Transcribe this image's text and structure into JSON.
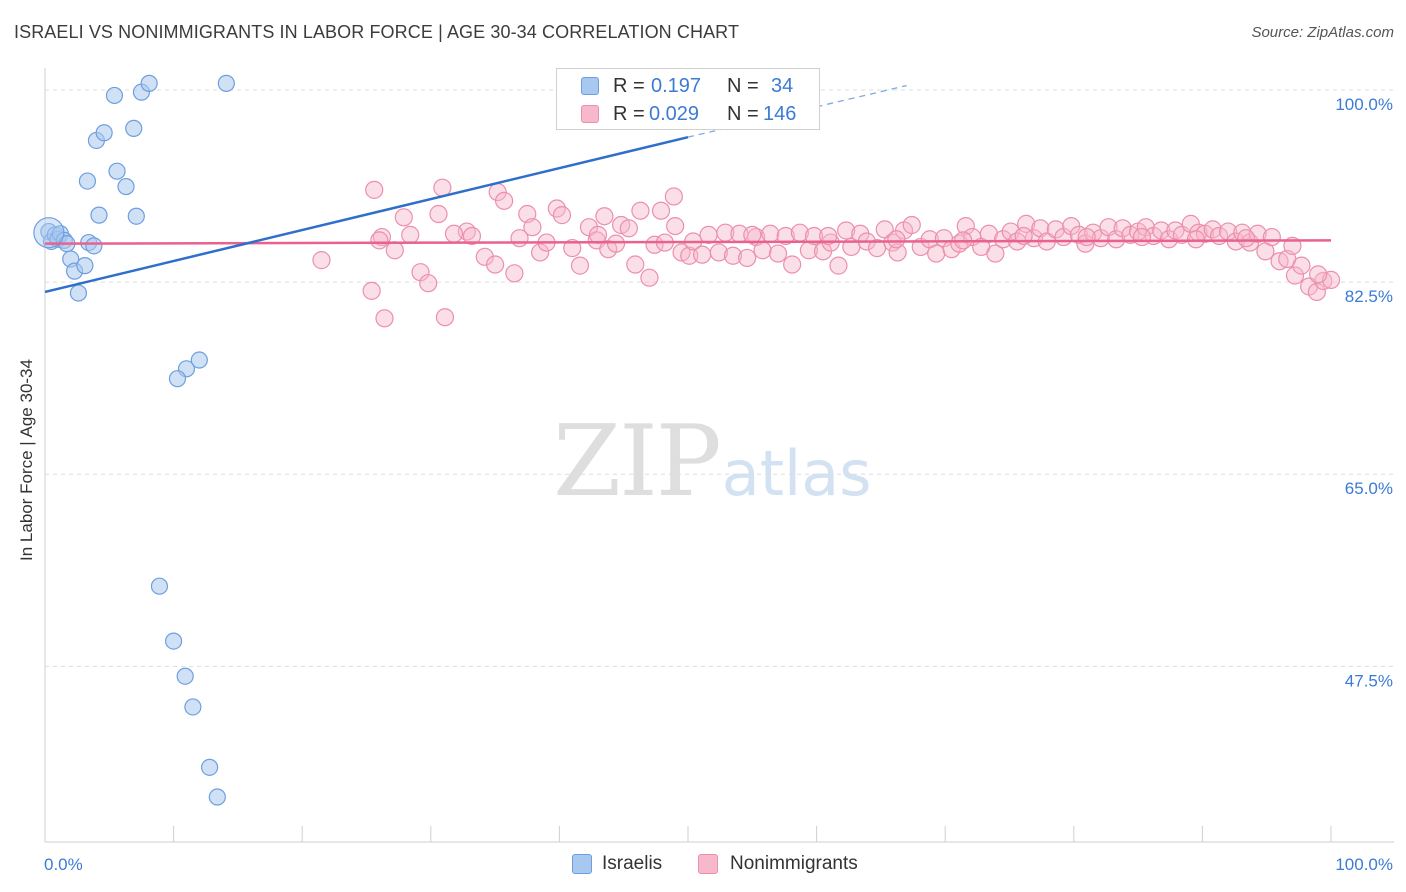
{
  "title": "ISRAELI VS NONIMMIGRANTS IN LABOR FORCE | AGE 30-34 CORRELATION CHART",
  "source": "Source: ZipAtlas.com",
  "watermark": {
    "zip": "ZIP",
    "atlas": "atlas"
  },
  "legend_top": {
    "rows": [
      {
        "r_label": "R =",
        "r_value": "0.197",
        "n_label": "N =",
        "n_value": "34"
      },
      {
        "r_label": "R =",
        "r_value": "0.029",
        "n_label": "N =",
        "n_value": "146"
      }
    ]
  },
  "bottom_legend": {
    "israelis": "Israelis",
    "nonimmigrants": "Nonimmigrants"
  },
  "colors": {
    "israelis_fill": "#a9c8ef",
    "israelis_stroke": "#6d9fe0",
    "israelis_line": "#2f6fcc",
    "nonimmigrants_fill": "#f7b8cb",
    "nonimmigrants_stroke": "#ec8fac",
    "nonimmigrants_line": "#e8628d",
    "tick_text": "#3c7bd4",
    "grid": "#dddddd"
  },
  "chart_data": {
    "type": "scatter",
    "title": "ISRAELI VS NONIMMIGRANTS IN LABOR FORCE | AGE 30-34 CORRELATION CHART",
    "xlabel": "",
    "ylabel": "In Labor Force | Age 30-34",
    "xlim": [
      0,
      100
    ],
    "ylim": [
      31.5,
      102
    ],
    "x_ticks": [
      "0.0%",
      "100.0%"
    ],
    "y_ticks": [
      {
        "value": 100.0,
        "label": "100.0%"
      },
      {
        "value": 82.5,
        "label": "82.5%"
      },
      {
        "value": 65.0,
        "label": "65.0%"
      },
      {
        "value": 47.5,
        "label": "47.5%"
      }
    ],
    "grid": true,
    "legend_position": "top-center",
    "series": [
      {
        "name": "Israelis",
        "r": 0.197,
        "n": 34,
        "trend": {
          "x0": 0,
          "y0": 81.6,
          "x1": 50,
          "y1": 95.7,
          "dashed_to_x": 67,
          "dashed_to_y": 100.4
        },
        "points": [
          [
            0.3,
            87.1
          ],
          [
            0.5,
            86.2
          ],
          [
            0.8,
            86.8
          ],
          [
            1.0,
            86.4
          ],
          [
            1.2,
            86.9
          ],
          [
            1.5,
            86.3
          ],
          [
            1.7,
            86.0
          ],
          [
            2.0,
            84.6
          ],
          [
            2.3,
            83.5
          ],
          [
            2.6,
            81.5
          ],
          [
            3.1,
            84.0
          ],
          [
            3.4,
            86.1
          ],
          [
            3.8,
            85.8
          ],
          [
            4.2,
            88.6
          ],
          [
            3.3,
            91.7
          ],
          [
            4.0,
            95.4
          ],
          [
            4.6,
            96.1
          ],
          [
            5.6,
            92.6
          ],
          [
            5.4,
            99.5
          ],
          [
            6.3,
            91.2
          ],
          [
            6.9,
            96.5
          ],
          [
            7.1,
            88.5
          ],
          [
            7.5,
            99.8
          ],
          [
            8.1,
            100.6
          ],
          [
            11.0,
            74.6
          ],
          [
            12.0,
            75.4
          ],
          [
            10.3,
            73.7
          ],
          [
            14.1,
            100.6
          ],
          [
            8.9,
            54.8
          ],
          [
            10.0,
            49.8
          ],
          [
            10.9,
            46.6
          ],
          [
            11.5,
            43.8
          ],
          [
            12.8,
            38.3
          ],
          [
            13.4,
            35.6
          ]
        ]
      },
      {
        "name": "Nonimmigrants",
        "r": 0.029,
        "n": 146,
        "trend": {
          "x0": 0,
          "y0": 86.0,
          "x1": 100,
          "y1": 86.3
        },
        "points": [
          [
            21.5,
            84.5
          ],
          [
            25.4,
            81.7
          ],
          [
            25.6,
            90.9
          ],
          [
            26.2,
            86.6
          ],
          [
            26.4,
            79.2
          ],
          [
            27.2,
            85.4
          ],
          [
            27.9,
            88.4
          ],
          [
            28.4,
            86.8
          ],
          [
            29.2,
            83.4
          ],
          [
            29.8,
            82.4
          ],
          [
            30.6,
            88.7
          ],
          [
            30.9,
            91.1
          ],
          [
            31.1,
            79.3
          ],
          [
            32.8,
            87.1
          ],
          [
            33.2,
            86.7
          ],
          [
            34.2,
            84.8
          ],
          [
            35.0,
            84.1
          ],
          [
            35.2,
            90.7
          ],
          [
            35.7,
            89.9
          ],
          [
            36.5,
            83.3
          ],
          [
            37.5,
            88.7
          ],
          [
            37.9,
            87.5
          ],
          [
            38.5,
            85.2
          ],
          [
            39.0,
            86.1
          ],
          [
            39.8,
            89.2
          ],
          [
            40.2,
            88.6
          ],
          [
            41.0,
            85.6
          ],
          [
            41.6,
            84.0
          ],
          [
            42.3,
            87.5
          ],
          [
            42.9,
            86.3
          ],
          [
            43.5,
            88.5
          ],
          [
            43.8,
            85.5
          ],
          [
            44.4,
            86.0
          ],
          [
            44.8,
            87.7
          ],
          [
            45.4,
            87.4
          ],
          [
            45.9,
            84.1
          ],
          [
            46.3,
            89.0
          ],
          [
            47.0,
            82.9
          ],
          [
            47.4,
            85.9
          ],
          [
            47.9,
            89.0
          ],
          [
            48.2,
            86.1
          ],
          [
            48.9,
            90.3
          ],
          [
            49.5,
            85.2
          ],
          [
            50.1,
            84.9
          ],
          [
            50.4,
            86.2
          ],
          [
            51.1,
            85.0
          ],
          [
            51.6,
            86.8
          ],
          [
            52.4,
            85.2
          ],
          [
            52.9,
            87.0
          ],
          [
            53.5,
            84.9
          ],
          [
            54.0,
            86.9
          ],
          [
            54.6,
            84.7
          ],
          [
            55.3,
            86.6
          ],
          [
            55.8,
            85.4
          ],
          [
            56.4,
            86.9
          ],
          [
            57.0,
            85.1
          ],
          [
            57.6,
            86.7
          ],
          [
            58.1,
            84.1
          ],
          [
            58.7,
            87.0
          ],
          [
            59.4,
            85.4
          ],
          [
            59.8,
            86.7
          ],
          [
            60.5,
            85.3
          ],
          [
            61.1,
            86.1
          ],
          [
            61.7,
            84.0
          ],
          [
            62.3,
            87.2
          ],
          [
            62.7,
            85.7
          ],
          [
            63.4,
            86.9
          ],
          [
            63.9,
            86.2
          ],
          [
            64.7,
            85.6
          ],
          [
            65.3,
            87.3
          ],
          [
            65.9,
            86.1
          ],
          [
            66.3,
            85.2
          ],
          [
            66.8,
            87.2
          ],
          [
            67.4,
            87.7
          ],
          [
            68.1,
            85.7
          ],
          [
            68.8,
            86.4
          ],
          [
            69.3,
            85.1
          ],
          [
            69.9,
            86.5
          ],
          [
            70.5,
            85.5
          ],
          [
            71.1,
            86.0
          ],
          [
            71.6,
            87.6
          ],
          [
            72.1,
            86.6
          ],
          [
            72.8,
            85.7
          ],
          [
            73.4,
            86.9
          ],
          [
            73.9,
            85.1
          ],
          [
            74.5,
            86.4
          ],
          [
            75.1,
            87.1
          ],
          [
            75.6,
            86.2
          ],
          [
            76.3,
            87.8
          ],
          [
            76.9,
            86.5
          ],
          [
            77.4,
            87.4
          ],
          [
            77.9,
            86.2
          ],
          [
            78.6,
            87.3
          ],
          [
            79.2,
            86.6
          ],
          [
            79.8,
            87.6
          ],
          [
            80.4,
            86.8
          ],
          [
            80.9,
            86.0
          ],
          [
            81.5,
            87.0
          ],
          [
            82.1,
            86.5
          ],
          [
            82.7,
            87.5
          ],
          [
            83.3,
            86.4
          ],
          [
            83.8,
            87.4
          ],
          [
            84.4,
            86.8
          ],
          [
            85.0,
            87.1
          ],
          [
            85.6,
            87.5
          ],
          [
            86.2,
            86.7
          ],
          [
            86.8,
            87.2
          ],
          [
            87.4,
            86.4
          ],
          [
            87.9,
            87.2
          ],
          [
            88.4,
            86.8
          ],
          [
            89.1,
            87.8
          ],
          [
            89.7,
            87.0
          ],
          [
            90.2,
            86.9
          ],
          [
            90.8,
            87.3
          ],
          [
            91.3,
            86.7
          ],
          [
            92.0,
            87.1
          ],
          [
            92.6,
            86.2
          ],
          [
            93.1,
            87.0
          ],
          [
            93.7,
            86.1
          ],
          [
            94.3,
            86.9
          ],
          [
            94.9,
            85.3
          ],
          [
            95.4,
            86.6
          ],
          [
            96.0,
            84.4
          ],
          [
            96.6,
            84.6
          ],
          [
            97.2,
            83.1
          ],
          [
            97.7,
            84.0
          ],
          [
            98.3,
            82.1
          ],
          [
            98.9,
            81.6
          ],
          [
            99.4,
            82.6
          ],
          [
            100.0,
            82.7
          ],
          [
            26.0,
            86.3
          ],
          [
            31.8,
            86.9
          ],
          [
            36.9,
            86.5
          ],
          [
            43.0,
            86.8
          ],
          [
            49.0,
            87.6
          ],
          [
            55.0,
            86.8
          ],
          [
            60.9,
            86.7
          ],
          [
            66.2,
            86.4
          ],
          [
            71.4,
            86.3
          ],
          [
            76.1,
            86.7
          ],
          [
            81.0,
            86.6
          ],
          [
            85.3,
            86.6
          ],
          [
            89.5,
            86.4
          ],
          [
            93.4,
            86.5
          ],
          [
            97.0,
            85.8
          ],
          [
            99.0,
            83.2
          ]
        ]
      }
    ]
  }
}
